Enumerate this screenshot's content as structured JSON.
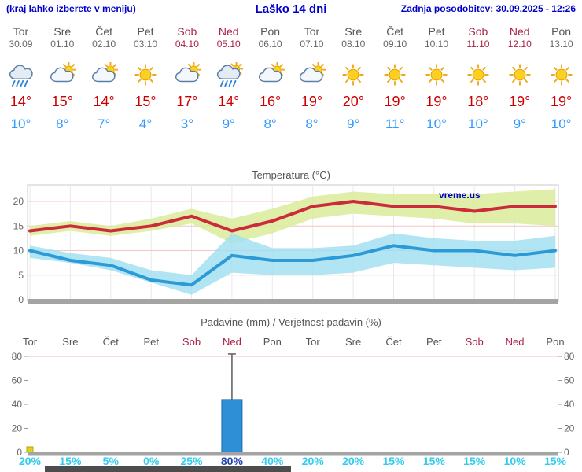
{
  "header": {
    "left_note": "(kraj lahko izberete v meniju)",
    "title": "Laško 14 dni",
    "last_update": "Zadnja posodobitev: 30.09.2025 - 12:26"
  },
  "colors": {
    "header_blue": "#0000cc",
    "weekend": "#aa2244",
    "max_temp": "#cc0000",
    "min_temp": "#3399ff",
    "percent": "#33ccee",
    "percent_highlight": "#2244aa",
    "bar_fill": "#2f8fd6",
    "bar_stroke": "#1a6db3",
    "temp_line_max": "#cc2b3a",
    "temp_line_min": "#2b9ad6",
    "band_max": "#dcec9e",
    "band_min": "#9edff0"
  },
  "forecast": {
    "days": [
      {
        "name": "Tor",
        "date": "30.09",
        "weekend": false,
        "icon": "rain",
        "tmax": "14°",
        "tmin": "10°"
      },
      {
        "name": "Sre",
        "date": "01.10",
        "weekend": false,
        "icon": "cloud-sun",
        "tmax": "15°",
        "tmin": "8°"
      },
      {
        "name": "Čet",
        "date": "02.10",
        "weekend": false,
        "icon": "cloud-sun",
        "tmax": "14°",
        "tmin": "7°"
      },
      {
        "name": "Pet",
        "date": "03.10",
        "weekend": false,
        "icon": "sun",
        "tmax": "15°",
        "tmin": "4°"
      },
      {
        "name": "Sob",
        "date": "04.10",
        "weekend": true,
        "icon": "cloud-sun",
        "tmax": "17°",
        "tmin": "3°"
      },
      {
        "name": "Ned",
        "date": "05.10",
        "weekend": true,
        "icon": "rain-sun",
        "tmax": "14°",
        "tmin": "9°"
      },
      {
        "name": "Pon",
        "date": "06.10",
        "weekend": false,
        "icon": "cloud-sun",
        "tmax": "16°",
        "tmin": "8°"
      },
      {
        "name": "Tor",
        "date": "07.10",
        "weekend": false,
        "icon": "cloud-sun",
        "tmax": "19°",
        "tmin": "8°"
      },
      {
        "name": "Sre",
        "date": "08.10",
        "weekend": false,
        "icon": "sun",
        "tmax": "20°",
        "tmin": "9°"
      },
      {
        "name": "Čet",
        "date": "09.10",
        "weekend": false,
        "icon": "sun",
        "tmax": "19°",
        "tmin": "11°"
      },
      {
        "name": "Pet",
        "date": "10.10",
        "weekend": false,
        "icon": "sun",
        "tmax": "19°",
        "tmin": "10°"
      },
      {
        "name": "Sob",
        "date": "11.10",
        "weekend": true,
        "icon": "sun",
        "tmax": "18°",
        "tmin": "10°"
      },
      {
        "name": "Ned",
        "date": "12.10",
        "weekend": true,
        "icon": "sun",
        "tmax": "19°",
        "tmin": "9°"
      },
      {
        "name": "Pon",
        "date": "13.10",
        "weekend": false,
        "icon": "sun",
        "tmax": "19°",
        "tmin": "10°"
      }
    ]
  },
  "chart_data": [
    {
      "type": "line",
      "title": "Temperatura (°C)",
      "watermark": "vreme.us",
      "x_labels": [
        "Tor",
        "Sre",
        "Čet",
        "Pet",
        "Sob",
        "Ned",
        "Pon",
        "Tor",
        "Sre",
        "Čet",
        "Pet",
        "Sob",
        "Ned",
        "Pon"
      ],
      "ylim": [
        0,
        23
      ],
      "yticks": [
        0,
        5,
        10,
        15,
        20
      ],
      "grid": true,
      "series": [
        {
          "name": "max",
          "values": [
            14,
            15,
            14,
            15,
            17,
            14,
            16,
            19,
            20,
            19,
            19,
            18,
            19,
            19
          ]
        },
        {
          "name": "max_upper",
          "values": [
            15,
            16,
            15,
            16.5,
            18.5,
            16.5,
            18.5,
            21,
            22,
            21.5,
            21.5,
            21.5,
            22,
            22.5
          ]
        },
        {
          "name": "max_lower",
          "values": [
            13,
            14,
            13,
            14,
            15.5,
            11.5,
            13.5,
            16.5,
            17.5,
            17,
            16.5,
            15.5,
            15.5,
            15
          ]
        },
        {
          "name": "min",
          "values": [
            10,
            8,
            7,
            4,
            3,
            9,
            8,
            8,
            9,
            11,
            10,
            10,
            9,
            10
          ]
        },
        {
          "name": "min_upper",
          "values": [
            11,
            9.5,
            8.5,
            6,
            5,
            13.5,
            10.5,
            10.5,
            11,
            13.5,
            12.5,
            12,
            12,
            13
          ]
        },
        {
          "name": "min_lower",
          "values": [
            8.5,
            7.5,
            6,
            3.5,
            1,
            5.5,
            5,
            5,
            5.5,
            7.5,
            7,
            6.5,
            6,
            6.5
          ]
        }
      ]
    },
    {
      "type": "bar",
      "title": "Padavine (mm) / Verjetnost padavin (%)",
      "categories": [
        "Tor",
        "Sre",
        "Čet",
        "Pet",
        "Sob",
        "Ned",
        "Pon",
        "Tor",
        "Sre",
        "Čet",
        "Pet",
        "Sob",
        "Ned",
        "Pon"
      ],
      "weekend_indices": [
        4,
        5,
        11,
        12
      ],
      "values_mm": [
        0.5,
        0,
        0,
        0,
        0,
        44,
        0,
        0,
        0,
        0,
        0,
        0,
        0,
        0
      ],
      "error_bar": {
        "index": 5,
        "top": 82
      },
      "probability_pct": [
        20,
        15,
        5,
        0,
        25,
        80,
        40,
        20,
        20,
        15,
        15,
        15,
        10,
        15
      ],
      "highlight_index": 5,
      "ylim": [
        0,
        85
      ],
      "yticks": [
        0,
        20,
        40,
        60,
        80
      ]
    }
  ]
}
